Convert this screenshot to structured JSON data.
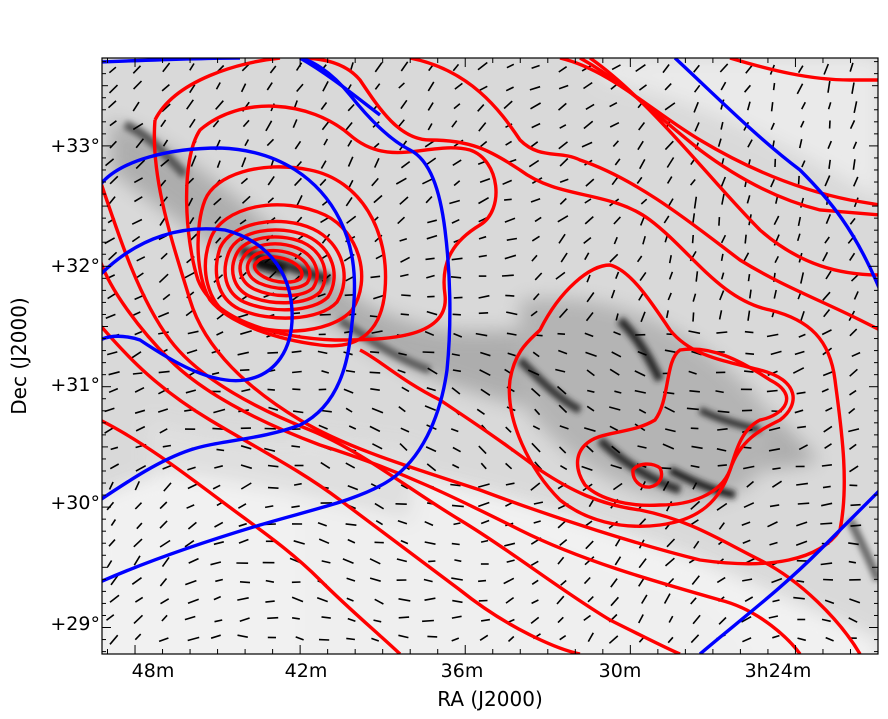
{
  "chart_data": {
    "type": "contour",
    "xlabel": "RA (J2000)",
    "ylabel": "Dec (J2000)",
    "x_ticks": [
      "48m",
      "42m",
      "36m",
      "30m",
      "3h24m"
    ],
    "y_ticks": [
      "+29°",
      "+30°",
      "+31°",
      "+32°",
      "+33°"
    ],
    "x_range_minutes": [
      49.2,
      21.0
    ],
    "y_range_deg": [
      28.78,
      33.73
    ],
    "grid": false,
    "layers": {
      "image": "grayscale column-density map",
      "vectors": "black polarization segments",
      "contours": [
        {
          "color": "#ff0000",
          "levels": 14
        },
        {
          "color": "#0000ff",
          "levels": 7
        }
      ]
    },
    "colors": {
      "red_contour": "#ff0000",
      "blue_contour": "#0000ff",
      "segments": "#000000"
    }
  }
}
